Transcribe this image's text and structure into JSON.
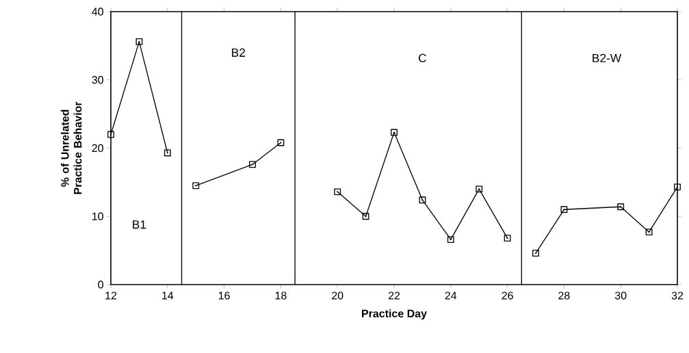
{
  "chart_data": {
    "type": "line",
    "xlabel": "Practice Day",
    "ylabel": "% of Unrelated Practice Behavior",
    "xlim": [
      12,
      32
    ],
    "ylim": [
      0,
      40
    ],
    "xticks": [
      12,
      14,
      16,
      18,
      20,
      22,
      24,
      26,
      28,
      30,
      32
    ],
    "yticks": [
      0,
      10,
      20,
      30,
      40
    ],
    "marker": "square",
    "line_style": "solid",
    "grid": false,
    "annotations": [
      "B1",
      "B2",
      "C",
      "B2-W"
    ],
    "series": [
      {
        "color": "#000000",
        "x": [
          12,
          13,
          14
        ],
        "values": [
          22,
          35.6,
          19.3
        ]
      },
      {
        "color": "#000000",
        "x": [
          15,
          17,
          18
        ],
        "values": [
          14.5,
          17.6,
          20.8
        ]
      },
      {
        "color": "#000000",
        "x": [
          20,
          21,
          22,
          23,
          24,
          25,
          26
        ],
        "values": [
          13.6,
          10,
          22.3,
          12.4,
          6.6,
          14,
          6.8
        ]
      },
      {
        "color": "#000000",
        "x": [
          27,
          28,
          30,
          31,
          32
        ],
        "values": [
          4.6,
          11,
          11.4,
          7.7,
          14.3
        ]
      }
    ],
    "ref_lines": [
      {
        "axis": "x",
        "value": 14.5,
        "color": "#000000"
      },
      {
        "axis": "x",
        "value": 18.5,
        "color": "#000000"
      },
      {
        "axis": "x",
        "value": 26.5,
        "color": "#000000"
      }
    ]
  }
}
